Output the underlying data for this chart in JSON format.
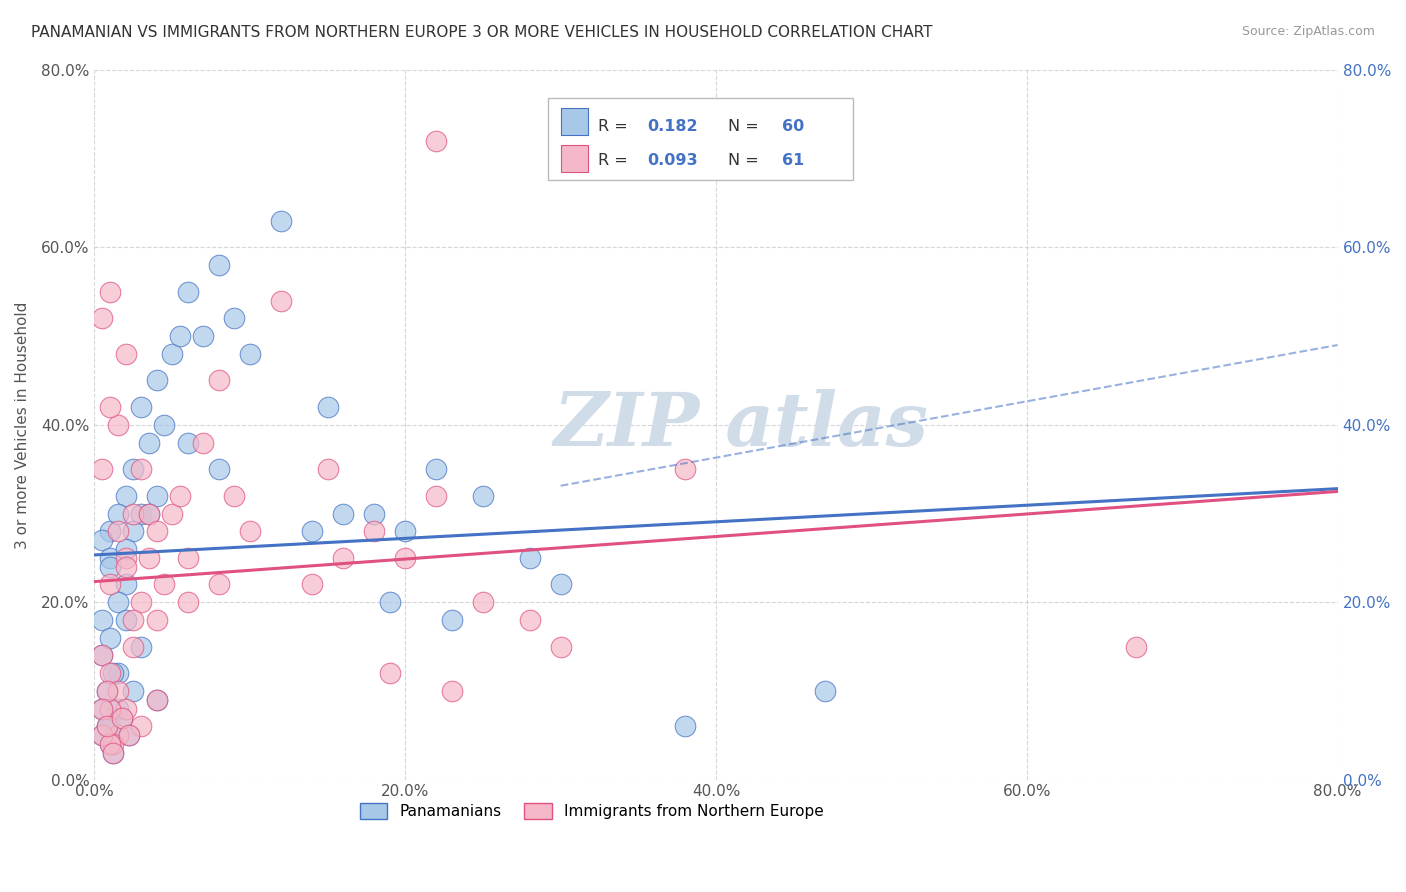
{
  "title": "PANAMANIAN VS IMMIGRANTS FROM NORTHERN EUROPE 3 OR MORE VEHICLES IN HOUSEHOLD CORRELATION CHART",
  "source": "Source: ZipAtlas.com",
  "ylabel": "3 or more Vehicles in Household",
  "series1_label": "Panamanians",
  "series2_label": "Immigrants from Northern Europe",
  "color_blue": "#a8c8e8",
  "color_pink": "#f4b8c8",
  "color_blue_line": "#4472c4",
  "color_pink_line": "#e05080",
  "legend_r1_val": "0.182",
  "legend_n1_val": "60",
  "legend_r2_val": "0.093",
  "legend_n2_val": "61",
  "R1": 0.182,
  "N1": 60,
  "R2": 0.093,
  "N2": 61,
  "xlim": [
    0.0,
    0.8
  ],
  "ylim": [
    0.0,
    0.8
  ],
  "xticks": [
    0.0,
    0.2,
    0.4,
    0.6,
    0.8
  ],
  "yticks": [
    0.0,
    0.2,
    0.4,
    0.6,
    0.8
  ],
  "background": "#ffffff",
  "title_color": "#333333",
  "axis_color": "#555555",
  "grid_color": "#cccccc",
  "right_tick_color": "#4472c4",
  "watermark_color": "#d0dce8",
  "blue_scatter_x": [
    0.01,
    0.02,
    0.015,
    0.005,
    0.01,
    0.025,
    0.02,
    0.015,
    0.01,
    0.005,
    0.03,
    0.035,
    0.04,
    0.045,
    0.05,
    0.055,
    0.06,
    0.03,
    0.025,
    0.02,
    0.07,
    0.08,
    0.09,
    0.1,
    0.12,
    0.15,
    0.08,
    0.06,
    0.04,
    0.035,
    0.005,
    0.01,
    0.015,
    0.02,
    0.025,
    0.03,
    0.015,
    0.01,
    0.008,
    0.012,
    0.18,
    0.2,
    0.22,
    0.25,
    0.28,
    0.3,
    0.14,
    0.16,
    0.19,
    0.23,
    0.005,
    0.01,
    0.005,
    0.008,
    0.012,
    0.018,
    0.022,
    0.04,
    0.38,
    0.47
  ],
  "blue_scatter_y": [
    0.28,
    0.32,
    0.3,
    0.27,
    0.25,
    0.35,
    0.22,
    0.2,
    0.24,
    0.18,
    0.42,
    0.38,
    0.45,
    0.4,
    0.48,
    0.5,
    0.55,
    0.3,
    0.28,
    0.26,
    0.5,
    0.58,
    0.52,
    0.48,
    0.63,
    0.42,
    0.35,
    0.38,
    0.32,
    0.3,
    0.14,
    0.16,
    0.12,
    0.18,
    0.1,
    0.15,
    0.08,
    0.06,
    0.1,
    0.12,
    0.3,
    0.28,
    0.35,
    0.32,
    0.25,
    0.22,
    0.28,
    0.3,
    0.2,
    0.18,
    0.05,
    0.04,
    0.08,
    0.06,
    0.03,
    0.07,
    0.05,
    0.09,
    0.06,
    0.1
  ],
  "pink_scatter_x": [
    0.01,
    0.02,
    0.015,
    0.005,
    0.01,
    0.025,
    0.02,
    0.015,
    0.01,
    0.005,
    0.03,
    0.035,
    0.04,
    0.045,
    0.05,
    0.055,
    0.06,
    0.03,
    0.025,
    0.02,
    0.07,
    0.08,
    0.09,
    0.1,
    0.12,
    0.15,
    0.08,
    0.06,
    0.04,
    0.035,
    0.005,
    0.01,
    0.015,
    0.02,
    0.025,
    0.03,
    0.015,
    0.01,
    0.008,
    0.012,
    0.18,
    0.2,
    0.22,
    0.25,
    0.28,
    0.3,
    0.14,
    0.16,
    0.19,
    0.23,
    0.005,
    0.01,
    0.005,
    0.008,
    0.012,
    0.018,
    0.022,
    0.04,
    0.38,
    0.67,
    0.22
  ],
  "pink_scatter_y": [
    0.55,
    0.48,
    0.4,
    0.35,
    0.42,
    0.3,
    0.25,
    0.28,
    0.22,
    0.52,
    0.35,
    0.3,
    0.28,
    0.22,
    0.3,
    0.32,
    0.25,
    0.2,
    0.18,
    0.24,
    0.38,
    0.45,
    0.32,
    0.28,
    0.54,
    0.35,
    0.22,
    0.2,
    0.18,
    0.25,
    0.14,
    0.12,
    0.1,
    0.08,
    0.15,
    0.06,
    0.05,
    0.08,
    0.1,
    0.04,
    0.28,
    0.25,
    0.32,
    0.2,
    0.18,
    0.15,
    0.22,
    0.25,
    0.12,
    0.1,
    0.05,
    0.04,
    0.08,
    0.06,
    0.03,
    0.07,
    0.05,
    0.09,
    0.35,
    0.15,
    0.72
  ]
}
